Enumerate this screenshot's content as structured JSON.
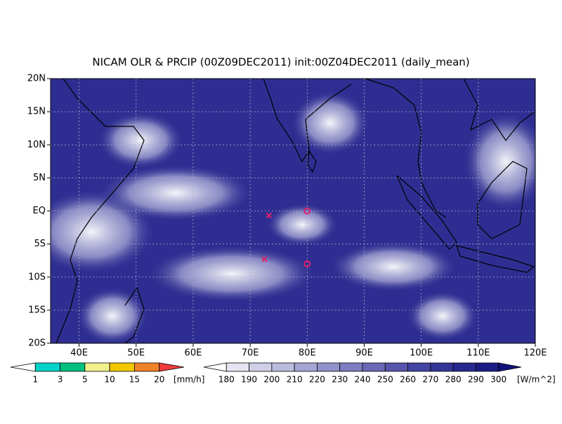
{
  "map": {
    "title": "NICAM OLR & PRCIP (00Z09DEC2011) init:00Z04DEC2011 (daily_mean)",
    "xlim": [
      35,
      120
    ],
    "ylim": [
      -20,
      20
    ],
    "xticks": [
      {
        "value": 40,
        "label": "40E"
      },
      {
        "value": 50,
        "label": "50E"
      },
      {
        "value": 60,
        "label": "60E"
      },
      {
        "value": 70,
        "label": "70E"
      },
      {
        "value": 80,
        "label": "80E"
      },
      {
        "value": 90,
        "label": "90E"
      },
      {
        "value": 100,
        "label": "100E"
      },
      {
        "value": 110,
        "label": "110E"
      },
      {
        "value": 120,
        "label": "120E"
      }
    ],
    "yticks": [
      {
        "value": 20,
        "label": "20N"
      },
      {
        "value": 15,
        "label": "15N"
      },
      {
        "value": 10,
        "label": "10N"
      },
      {
        "value": 5,
        "label": "5N"
      },
      {
        "value": 0,
        "label": "EQ"
      },
      {
        "value": -5,
        "label": "5S"
      },
      {
        "value": -10,
        "label": "10S"
      },
      {
        "value": -15,
        "label": "15S"
      },
      {
        "value": -20,
        "label": "20S"
      }
    ],
    "grid": true,
    "markers": [
      {
        "shape": "x",
        "lon": 73.3,
        "lat": -0.7,
        "color": "#e0206a"
      },
      {
        "shape": "x",
        "lon": 72.5,
        "lat": -7.3,
        "color": "#e0206a"
      },
      {
        "shape": "o",
        "lon": 80,
        "lat": 0,
        "color": "#e0206a"
      },
      {
        "shape": "o",
        "lon": 80,
        "lat": -8,
        "color": "#e0206a"
      }
    ],
    "precip_colorbar": {
      "levels": [
        1,
        3,
        5,
        10,
        15,
        20
      ],
      "unit": "[mm/h]",
      "colors": [
        "#ffffff",
        "#00d2c8",
        "#00c080",
        "#f0f08c",
        "#f0c800",
        "#f08228",
        "#f03c3c"
      ]
    },
    "olr_colorbar": {
      "levels": [
        180,
        190,
        200,
        210,
        220,
        230,
        240,
        250,
        260,
        270,
        280,
        290,
        300
      ],
      "unit": "[W/m^2]",
      "colors": [
        "#ffffff",
        "#e4e4f2",
        "#cfcfe8",
        "#bbbbde",
        "#a6a6d4",
        "#9292ca",
        "#7d7dc0",
        "#6969b6",
        "#5555ac",
        "#4444a2",
        "#353598",
        "#28288e",
        "#1c1c84",
        "#12127a"
      ]
    }
  }
}
